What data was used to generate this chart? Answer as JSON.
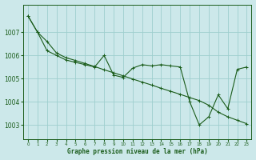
{
  "title": "Graphe pression niveau de la mer (hPa)",
  "bg_color": "#cce8ea",
  "grid_color": "#9ecece",
  "line_color": "#1a5c1a",
  "xlim": [
    -0.5,
    23.5
  ],
  "ylim": [
    1002.4,
    1008.2
  ],
  "yticks": [
    1003,
    1004,
    1005,
    1006,
    1007
  ],
  "xticks": [
    0,
    1,
    2,
    3,
    4,
    5,
    6,
    7,
    8,
    9,
    10,
    11,
    12,
    13,
    14,
    15,
    16,
    17,
    18,
    19,
    20,
    21,
    22,
    23
  ],
  "series1_x": [
    0,
    1,
    2,
    3,
    4,
    5,
    6,
    7,
    8,
    9,
    10,
    11,
    12,
    13,
    14,
    15,
    16,
    17,
    18,
    19,
    20,
    21,
    22,
    23
  ],
  "series1_y": [
    1007.7,
    1007.0,
    1006.2,
    1006.0,
    1005.8,
    1005.7,
    1005.6,
    1005.5,
    1006.0,
    1005.15,
    1005.05,
    1005.45,
    1005.6,
    1005.55,
    1005.6,
    1005.55,
    1005.5,
    1004.0,
    1003.0,
    1003.35,
    1004.3,
    1003.7,
    1005.4,
    1005.5
  ],
  "series2_x": [
    0,
    1,
    2,
    3,
    4,
    5,
    6,
    7,
    8,
    9,
    10,
    11,
    12,
    13,
    14,
    15,
    16,
    17,
    18,
    19,
    20,
    21,
    22,
    23
  ],
  "series2_y": [
    1007.7,
    1007.0,
    1006.6,
    1006.1,
    1005.9,
    1005.78,
    1005.65,
    1005.52,
    1005.38,
    1005.25,
    1005.12,
    1004.98,
    1004.85,
    1004.72,
    1004.58,
    1004.45,
    1004.32,
    1004.18,
    1004.05,
    1003.85,
    1003.55,
    1003.35,
    1003.2,
    1003.05
  ]
}
